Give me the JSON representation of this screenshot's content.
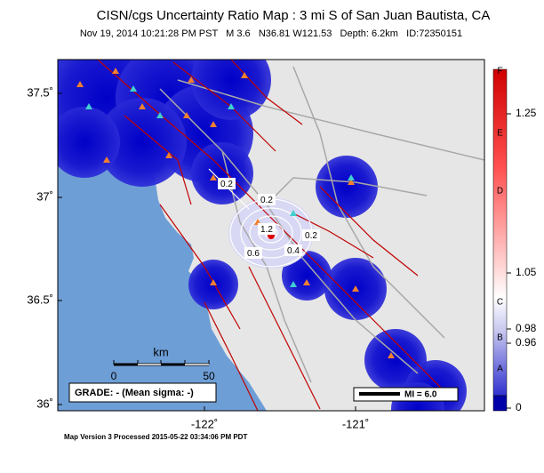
{
  "header": {
    "title": "CISN/cgs Uncertainty Ratio Map : 3 mi S of San Juan Bautista, CA",
    "subtitle": "Nov 19, 2014 10:21:28 PM PST   M 3.6   N36.81 W121.53   Depth: 6.2km   ID:72350151"
  },
  "axes": {
    "lat_labels": [
      "37.5˚",
      "37˚",
      "36.5˚",
      "36˚"
    ],
    "lon_labels": [
      "-122˚",
      "-121˚"
    ]
  },
  "scalebar": {
    "unit": "km",
    "start": "0",
    "end": "50"
  },
  "grade": "GRADE: - (Mean sigma: -)",
  "mi_legend": "MI = 6.0",
  "contour_labels": [
    "0.2",
    "0.2",
    "1.2",
    "0.6",
    "0.4",
    "0.2"
  ],
  "colorbar": {
    "letters": [
      "F",
      "E",
      "D",
      "C",
      "B",
      "A"
    ],
    "values": [
      "1.25",
      "1.05",
      "0.98",
      "0.96",
      "0"
    ]
  },
  "footer": "Map Version 3 Processed 2015-05-22 03:34:06 PM PDT"
}
